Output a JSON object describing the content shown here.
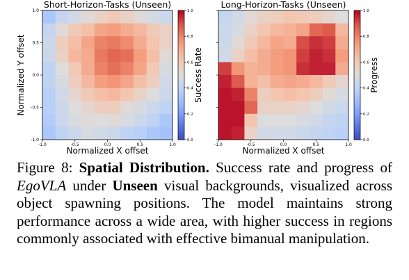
{
  "chart_data": [
    {
      "type": "heatmap",
      "title": "Short-Horizon-Tasks (Unseen)",
      "xlabel": "Normalized X offset",
      "ylabel": "Normalized Y offset",
      "colorbar_label": "Success Rate",
      "xlim": [
        -1.0,
        1.0
      ],
      "ylim": [
        -1.0,
        1.0
      ],
      "x_ticks": [
        "-1.0",
        "-0.5",
        "0.0",
        "0.5",
        "1.0"
      ],
      "y_ticks": [
        "-1.0",
        "-0.5",
        "0.0",
        "0.5",
        "1.0"
      ],
      "colorbar_ticks": [
        "0.0",
        "0.2",
        "0.4",
        "0.6",
        "0.8",
        "1.0"
      ],
      "colormap": "coolwarm",
      "vmin": 0.0,
      "vmax": 1.0,
      "grid_rows_top_to_bottom": [
        [
          0.34,
          0.42,
          0.46,
          0.52,
          0.56,
          0.6,
          0.56,
          0.52,
          0.47,
          0.44
        ],
        [
          0.42,
          0.52,
          0.6,
          0.64,
          0.72,
          0.74,
          0.7,
          0.66,
          0.6,
          0.56
        ],
        [
          0.44,
          0.58,
          0.64,
          0.72,
          0.8,
          0.82,
          0.78,
          0.7,
          0.62,
          0.56
        ],
        [
          0.44,
          0.56,
          0.66,
          0.7,
          0.82,
          0.86,
          0.84,
          0.74,
          0.64,
          0.52
        ],
        [
          0.4,
          0.5,
          0.6,
          0.7,
          0.8,
          0.84,
          0.8,
          0.72,
          0.6,
          0.48
        ],
        [
          0.4,
          0.48,
          0.58,
          0.66,
          0.74,
          0.76,
          0.72,
          0.64,
          0.58,
          0.46
        ],
        [
          0.38,
          0.46,
          0.54,
          0.6,
          0.64,
          0.66,
          0.62,
          0.56,
          0.5,
          0.44
        ],
        [
          0.38,
          0.44,
          0.5,
          0.54,
          0.58,
          0.58,
          0.52,
          0.48,
          0.44,
          0.4
        ],
        [
          0.36,
          0.44,
          0.48,
          0.52,
          0.5,
          0.52,
          0.48,
          0.44,
          0.4,
          0.34
        ],
        [
          0.34,
          0.4,
          0.44,
          0.48,
          0.46,
          0.44,
          0.4,
          0.38,
          0.34,
          0.32
        ]
      ]
    },
    {
      "type": "heatmap",
      "title": "Long-Horizon-Tasks (Unseen)",
      "xlabel": "Normalized X offset",
      "ylabel": "",
      "colorbar_label": "Progress",
      "xlim": [
        -1.0,
        1.0
      ],
      "ylim": [
        -1.0,
        1.0
      ],
      "x_ticks": [
        "-1.0",
        "-0.5",
        "0.0",
        "0.5",
        "1.0"
      ],
      "y_ticks": [],
      "colorbar_ticks": [
        "0.0",
        "0.2",
        "0.4",
        "0.6",
        "0.8",
        "1.0"
      ],
      "colormap": "coolwarm",
      "vmin": 0.0,
      "vmax": 1.0,
      "grid_rows_top_to_bottom": [
        [
          0.42,
          0.46,
          0.52,
          0.56,
          0.58,
          0.62,
          0.6,
          0.58,
          0.54,
          0.5
        ],
        [
          0.44,
          0.48,
          0.56,
          0.62,
          0.66,
          0.68,
          0.72,
          0.86,
          0.88,
          0.66
        ],
        [
          0.44,
          0.52,
          0.6,
          0.66,
          0.72,
          0.7,
          0.9,
          0.94,
          0.92,
          0.7
        ],
        [
          0.46,
          0.56,
          0.64,
          0.7,
          0.74,
          0.76,
          0.92,
          0.96,
          0.94,
          0.74
        ],
        [
          0.92,
          0.76,
          0.68,
          0.7,
          0.74,
          0.76,
          0.94,
          0.96,
          0.96,
          0.7
        ],
        [
          0.96,
          0.88,
          0.68,
          0.64,
          0.7,
          0.72,
          0.7,
          0.66,
          0.6,
          0.54
        ],
        [
          0.98,
          0.96,
          0.8,
          0.58,
          0.62,
          0.64,
          0.62,
          0.58,
          0.52,
          0.48
        ],
        [
          0.98,
          0.98,
          0.86,
          0.56,
          0.56,
          0.56,
          0.54,
          0.5,
          0.46,
          0.44
        ],
        [
          0.98,
          0.98,
          0.62,
          0.5,
          0.5,
          0.5,
          0.48,
          0.46,
          0.42,
          0.4
        ],
        [
          0.98,
          0.96,
          0.56,
          0.46,
          0.46,
          0.46,
          0.44,
          0.42,
          0.4,
          0.38
        ]
      ]
    }
  ],
  "caption": {
    "figure_label": "Figure 8:",
    "bold_title": "Spatial Distribution.",
    "text_1": "Success rate and progress of",
    "italic_model": "EgoVLA",
    "text_2": "under",
    "bold_unseen": "Unseen",
    "text_3": "visual backgrounds, visualized across object spawning positions. The model maintains strong performance across a wide area, with higher success in regions commonly associated with effective bimanual manipulation."
  }
}
